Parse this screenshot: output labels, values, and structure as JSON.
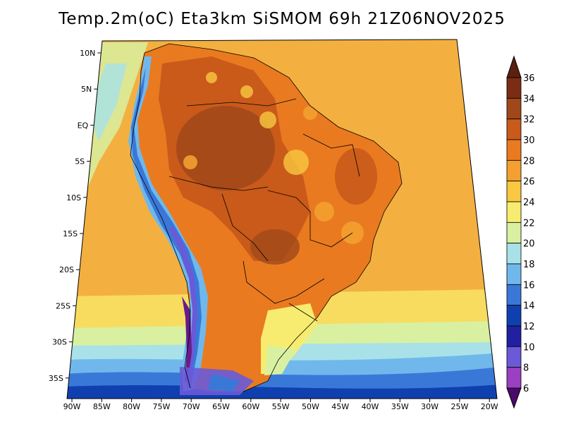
{
  "title": "Temp.2m(oC) Eta3km SiSMOM 69h 21Z06NOV2025",
  "map": {
    "lat_labels": [
      "10N",
      "5N",
      "EQ",
      "5S",
      "10S",
      "15S",
      "20S",
      "25S",
      "30S",
      "35S"
    ],
    "lon_labels": [
      "90W",
      "85W",
      "80W",
      "75W",
      "70W",
      "65W",
      "60W",
      "55W",
      "50W",
      "45W",
      "40W",
      "35W",
      "30W",
      "25W",
      "20W"
    ]
  },
  "colorbar": {
    "labels": [
      "36",
      "34",
      "32",
      "30",
      "28",
      "26",
      "24",
      "22",
      "20",
      "18",
      "16",
      "14",
      "12",
      "10",
      "8",
      "6"
    ],
    "colors": [
      "#7a2d12",
      "#a0481a",
      "#c95a1a",
      "#e97a20",
      "#f3a030",
      "#f8c840",
      "#f8ec70",
      "#d8f0a0",
      "#a8e2e8",
      "#70b8ec",
      "#3a78d8",
      "#1040b0",
      "#2020a0",
      "#6a5ad8",
      "#9a40c0",
      "#6a1a8a"
    ],
    "top_color": "#5a2010",
    "bottom_color": "#4a0a6a"
  }
}
